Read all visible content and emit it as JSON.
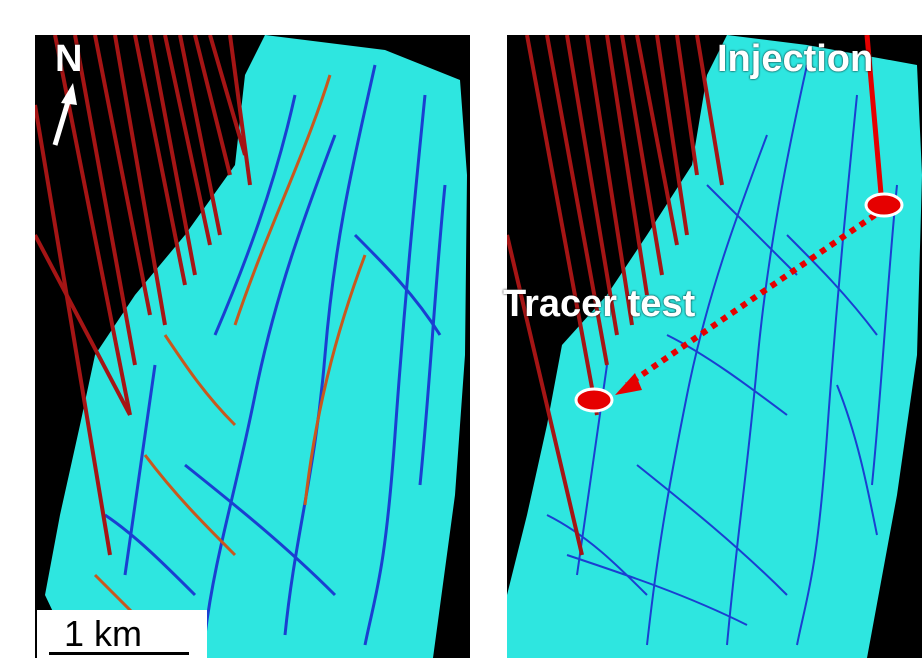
{
  "labels": {
    "north": "N",
    "injection": "Injection",
    "tracer_test": "Tracer test",
    "scale": "1 km"
  },
  "colors": {
    "background": "#000000",
    "surface": "#2ee6e0",
    "fracture_blue": "#1a3fd1",
    "fracture_orange": "#c8581e",
    "well": "#a51515",
    "marker": "#e60000"
  },
  "icons": {
    "north_arrow": "north-arrow-icon",
    "injection_marker": "injection-well-marker-icon",
    "tracer_marker": "tracer-well-marker-icon"
  }
}
